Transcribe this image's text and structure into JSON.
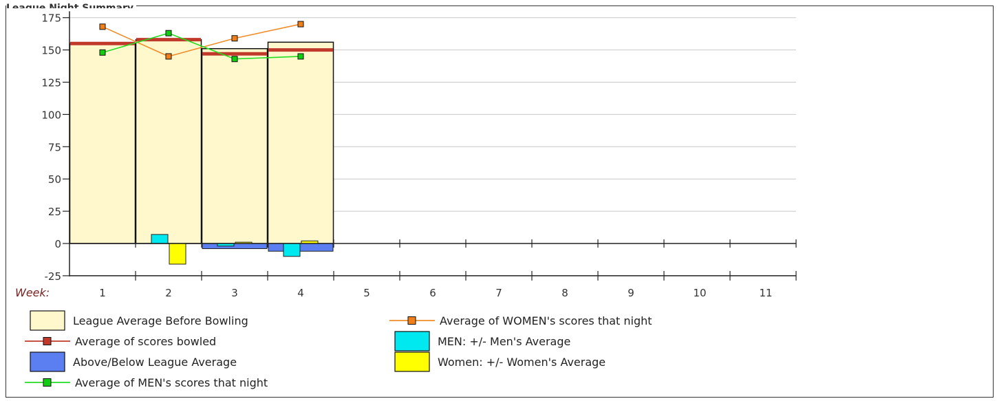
{
  "chart_data": {
    "type": "bar",
    "title": "League Night Summary",
    "xlabel": "Week:",
    "categories": [
      "1",
      "2",
      "3",
      "4",
      "5",
      "6",
      "7",
      "8",
      "9",
      "10",
      "11"
    ],
    "yticks": [
      175,
      150,
      125,
      100,
      75,
      50,
      25,
      0,
      -25
    ],
    "ylim": [
      -25,
      180
    ],
    "grid": true,
    "legend_position": "bottom",
    "series": [
      {
        "name": "League Average Before Bowling",
        "kind": "bar",
        "color": "#fff8cc",
        "values": [
          155,
          158,
          151,
          156,
          null,
          null,
          null,
          null,
          null,
          null,
          null
        ]
      },
      {
        "name": "Average of scores bowled",
        "kind": "level",
        "color": "#c0392b",
        "values": [
          155,
          158,
          147,
          150,
          null,
          null,
          null,
          null,
          null,
          null,
          null
        ]
      },
      {
        "name": "Above/Below League Average",
        "kind": "bar",
        "color": "#5b7ff0",
        "values": [
          0,
          0,
          -4,
          -6,
          null,
          null,
          null,
          null,
          null,
          null,
          null
        ]
      },
      {
        "name": "Average of MEN's scores that night",
        "kind": "line",
        "color": "#22dd22",
        "marker": "#11cc11",
        "values": [
          148,
          163,
          143,
          145,
          null,
          null,
          null,
          null,
          null,
          null,
          null
        ]
      },
      {
        "name": "Average of WOMEN's scores that night",
        "kind": "line",
        "color": "#f28c28",
        "marker": "#f07f1a",
        "values": [
          168,
          145,
          159,
          170,
          null,
          null,
          null,
          null,
          null,
          null,
          null
        ]
      },
      {
        "name": "MEN: +/- Men's Average",
        "kind": "bar",
        "color": "#00e8f0",
        "values": [
          0,
          7,
          -2,
          -10,
          null,
          null,
          null,
          null,
          null,
          null,
          null
        ]
      },
      {
        "name": "Women: +/- Women's Average",
        "kind": "bar",
        "color": "#ffff00",
        "values": [
          0,
          -16,
          1,
          2,
          null,
          null,
          null,
          null,
          null,
          null,
          null
        ]
      }
    ]
  },
  "legend": [
    {
      "label": "League Average Before Bowling",
      "type": "box",
      "color": "#fff8cc"
    },
    {
      "label": "Average of WOMEN's scores that night",
      "type": "line",
      "color": "#f28c28",
      "marker": "#f07f1a"
    },
    {
      "label": "Average of scores bowled",
      "type": "line",
      "color": "#c0392b",
      "marker": "#c0392b"
    },
    {
      "label": "MEN: +/- Men's Average",
      "type": "box",
      "color": "#00e8f0"
    },
    {
      "label": "Above/Below League Average",
      "type": "box",
      "color": "#5b7ff0"
    },
    {
      "label": "Women: +/- Women's Average",
      "type": "box",
      "color": "#ffff00"
    },
    {
      "label": "Average of MEN's scores that night",
      "type": "line",
      "color": "#22dd22",
      "marker": "#11cc11"
    }
  ]
}
